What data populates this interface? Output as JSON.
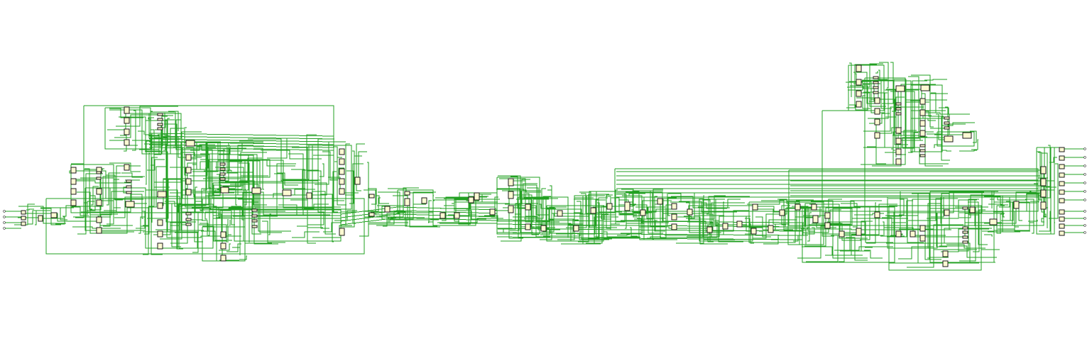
{
  "page": {
    "title": ""
  },
  "diagram": {
    "type": "netlist-schematic",
    "text_labels": [],
    "colors": {
      "background": "#ffffff",
      "wire": "#22a022",
      "cell_fill": "#fdfad2",
      "cell_stroke": "#1a1a1a",
      "port": "#333333"
    },
    "legend": "none",
    "grid": false
  }
}
